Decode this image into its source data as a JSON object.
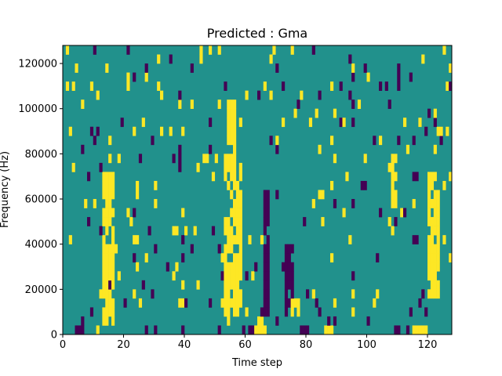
{
  "chart_data": {
    "type": "heatmap",
    "title": "Predicted : Gma",
    "xlabel": "Time step",
    "ylabel": "Frequency (Hz)",
    "xlim": [
      0,
      128
    ],
    "ylim": [
      0,
      128000
    ],
    "n_time_steps": 128,
    "n_freq_bins": 32,
    "x_ticks": [
      0,
      20,
      40,
      60,
      80,
      100,
      120
    ],
    "x_tick_labels": [
      "0",
      "20",
      "40",
      "60",
      "80",
      "100",
      "120"
    ],
    "y_ticks": [
      0,
      20000,
      40000,
      60000,
      80000,
      100000,
      120000
    ],
    "y_tick_labels": [
      "0",
      "20000",
      "40000",
      "60000",
      "80000",
      "100000",
      "120000"
    ],
    "colormap": {
      "low": "#440154",
      "mid": "#21918c",
      "high": "#fde725"
    },
    "grid": false,
    "legend": "none",
    "bands": [
      {
        "level": "high",
        "x_start": 13,
        "x_end": 17,
        "f_start": 6000,
        "f_end": 72000
      },
      {
        "level": "high",
        "x_start": 53,
        "x_end": 59,
        "f_start": 8000,
        "f_end": 76000
      },
      {
        "level": "high",
        "x_start": 54,
        "x_end": 57,
        "f_start": 76000,
        "f_end": 104000
      },
      {
        "level": "high",
        "x_start": 120,
        "x_end": 124,
        "f_start": 16000,
        "f_end": 72000
      },
      {
        "level": "high",
        "x_start": 108,
        "x_end": 110,
        "f_start": 56000,
        "f_end": 84000
      },
      {
        "level": "low",
        "x_start": 66,
        "x_end": 68,
        "f_start": 8000,
        "f_end": 64000
      },
      {
        "level": "low",
        "x_start": 73,
        "x_end": 76,
        "f_start": 8000,
        "f_end": 40000
      },
      {
        "level": "high",
        "x_start": 75,
        "x_end": 78,
        "f_start": 8000,
        "f_end": 16000
      },
      {
        "level": "low",
        "x_start": 59,
        "x_end": 66,
        "f_start": 0,
        "f_end": 4000
      },
      {
        "level": "high",
        "x_start": 63,
        "x_end": 67,
        "f_start": 0,
        "f_end": 4000
      },
      {
        "level": "low",
        "x_start": 78,
        "x_end": 82,
        "f_start": 0,
        "f_end": 4000
      },
      {
        "level": "high",
        "x_start": 85,
        "x_end": 89,
        "f_start": 0,
        "f_end": 4000
      },
      {
        "level": "low",
        "x_start": 109,
        "x_end": 114,
        "f_start": 0,
        "f_end": 4000
      },
      {
        "level": "high",
        "x_start": 115,
        "x_end": 120,
        "f_start": 0,
        "f_end": 4000
      },
      {
        "level": "low",
        "x_start": 4,
        "x_end": 7,
        "f_start": 0,
        "f_end": 8000
      }
    ]
  }
}
